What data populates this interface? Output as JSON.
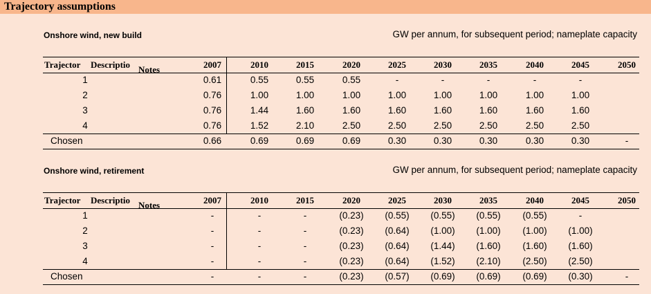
{
  "title": "Trajectory assumptions",
  "header_labels": {
    "col1": "Trajectory",
    "col2": "Description",
    "col3": "Notes",
    "years": [
      "2007",
      "2010",
      "2015",
      "2020",
      "2025",
      "2030",
      "2035",
      "2040",
      "2045",
      "2050"
    ]
  },
  "sections": [
    {
      "name": "Onshore wind, new build",
      "unit": "GW per annum, for subsequent period; nameplate capacity",
      "rows": [
        {
          "label": "1",
          "values": [
            "0.61",
            "0.55",
            "0.55",
            "0.55",
            "-",
            "-",
            "-",
            "-",
            "-",
            ""
          ]
        },
        {
          "label": "2",
          "values": [
            "0.76",
            "1.00",
            "1.00",
            "1.00",
            "1.00",
            "1.00",
            "1.00",
            "1.00",
            "1.00",
            ""
          ]
        },
        {
          "label": "3",
          "values": [
            "0.76",
            "1.44",
            "1.60",
            "1.60",
            "1.60",
            "1.60",
            "1.60",
            "1.60",
            "1.60",
            ""
          ]
        },
        {
          "label": "4",
          "values": [
            "0.76",
            "1.52",
            "2.10",
            "2.50",
            "2.50",
            "2.50",
            "2.50",
            "2.50",
            "2.50",
            ""
          ]
        }
      ],
      "chosen": {
        "label": "Chosen",
        "values": [
          "0.66",
          "0.69",
          "0.69",
          "0.69",
          "0.30",
          "0.30",
          "0.30",
          "0.30",
          "0.30",
          "-"
        ]
      }
    },
    {
      "name": "Onshore wind, retirement",
      "unit": "GW per annum, for subsequent period; nameplate capacity",
      "rows": [
        {
          "label": "1",
          "values": [
            "-",
            "-",
            "-",
            "(0.23)",
            "(0.55)",
            "(0.55)",
            "(0.55)",
            "(0.55)",
            "-",
            ""
          ]
        },
        {
          "label": "2",
          "values": [
            "-",
            "-",
            "-",
            "(0.23)",
            "(0.64)",
            "(1.00)",
            "(1.00)",
            "(1.00)",
            "(1.00)",
            ""
          ]
        },
        {
          "label": "3",
          "values": [
            "-",
            "-",
            "-",
            "(0.23)",
            "(0.64)",
            "(1.44)",
            "(1.60)",
            "(1.60)",
            "(1.60)",
            ""
          ]
        },
        {
          "label": "4",
          "values": [
            "-",
            "-",
            "-",
            "(0.23)",
            "(0.64)",
            "(1.52)",
            "(2.10)",
            "(2.50)",
            "(2.50)",
            ""
          ]
        }
      ],
      "chosen": {
        "label": "Chosen",
        "values": [
          "-",
          "-",
          "-",
          "(0.23)",
          "(0.57)",
          "(0.69)",
          "(0.69)",
          "(0.69)",
          "(0.30)",
          "-"
        ]
      }
    }
  ]
}
